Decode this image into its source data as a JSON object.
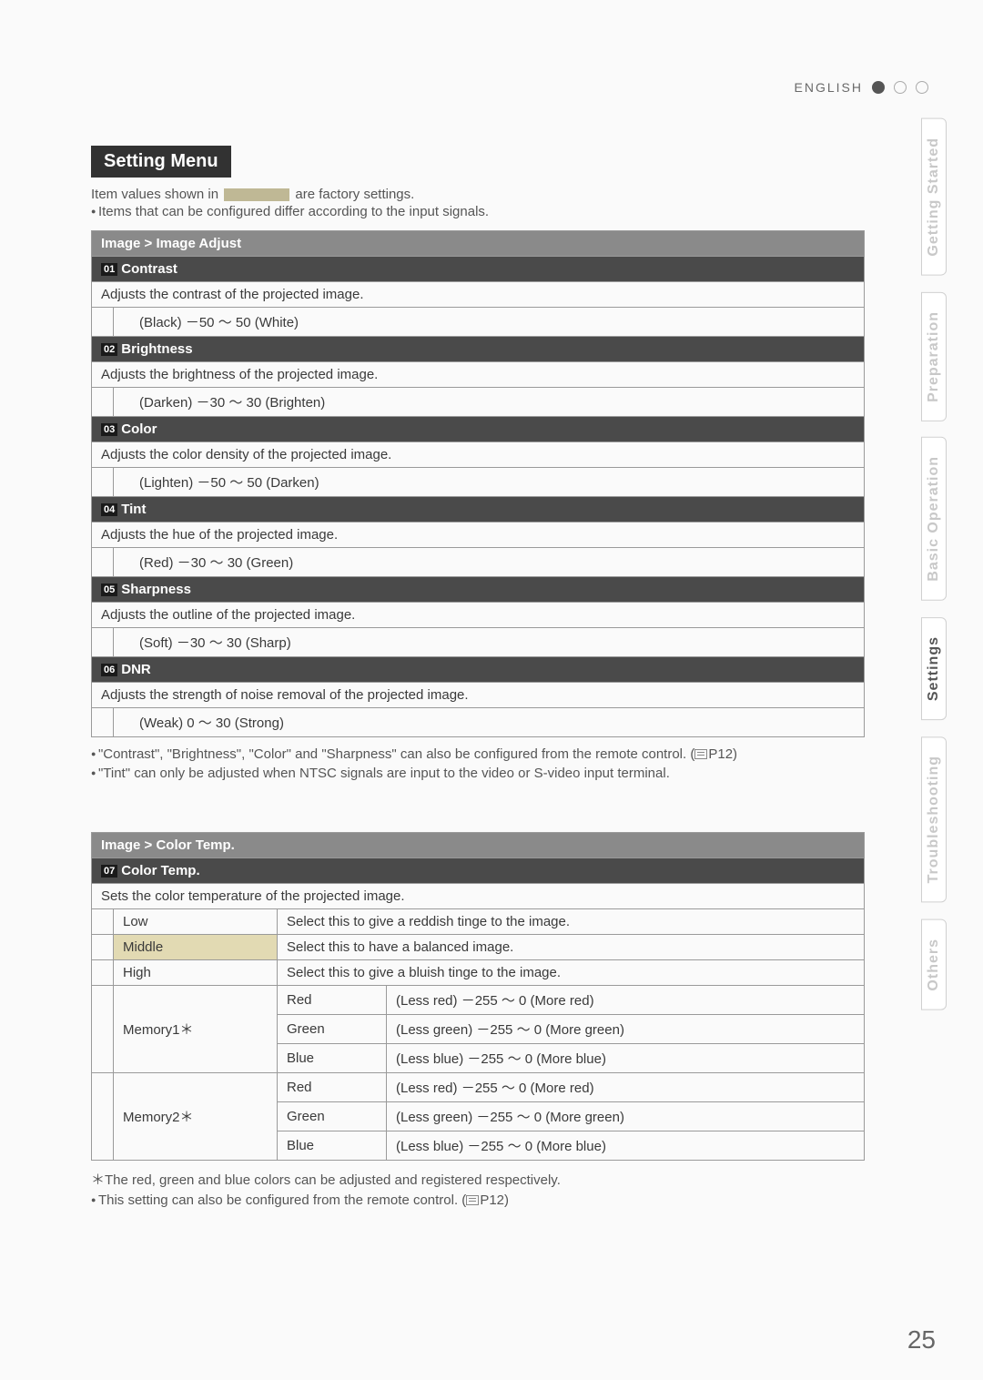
{
  "language_label": "ENGLISH",
  "side_tabs": [
    "Getting Started",
    "Preparation",
    "Basic Operation",
    "Settings",
    "Troubleshooting",
    "Others"
  ],
  "active_tab_index": 3,
  "section_title": "Setting Menu",
  "intro": {
    "line1_pre": "Item values shown in ",
    "line1_post": " are factory settings.",
    "line2": "Items that can be configured differ according to the input signals."
  },
  "image_adjust": {
    "header": "Image > Image Adjust",
    "rows": [
      {
        "num": "01",
        "name": "Contrast",
        "desc": "Adjusts the contrast of the projected image.",
        "range": "(Black) －50 ～ 50 (White)"
      },
      {
        "num": "02",
        "name": "Brightness",
        "desc": "Adjusts the brightness of the projected image.",
        "range": "(Darken) －30 ～ 30 (Brighten)"
      },
      {
        "num": "03",
        "name": "Color",
        "desc": "Adjusts the color density of the projected image.",
        "range": "(Lighten) －50 ～ 50 (Darken)"
      },
      {
        "num": "04",
        "name": "Tint",
        "desc": "Adjusts the hue of the projected image.",
        "range": "(Red) －30 ～ 30 (Green)"
      },
      {
        "num": "05",
        "name": "Sharpness",
        "desc": "Adjusts the outline of the projected image.",
        "range": "(Soft) －30 ～ 30 (Sharp)"
      },
      {
        "num": "06",
        "name": "DNR",
        "desc": "Adjusts the strength of noise removal of the projected image.",
        "range": "(Weak) 0 ～ 30 (Strong)"
      }
    ],
    "notes": [
      "\"Contrast\", \"Brightness\", \"Color\" and \"Sharpness\" can also be configured from the remote control. (",
      "P12)",
      "\"Tint\" can only be adjusted when NTSC signals are input to the video or S-video input terminal."
    ]
  },
  "color_temp": {
    "header": "Image > Color Temp.",
    "sub_num": "07",
    "sub_name": "Color Temp.",
    "desc": "Sets the color temperature of the projected image.",
    "simple_rows": [
      {
        "label": "Low",
        "text": "Select this to give a reddish tinge to the image."
      },
      {
        "label": "Middle",
        "text": "Select this to have a balanced image.",
        "highlight": true
      },
      {
        "label": "High",
        "text": "Select this to give a bluish tinge to the image."
      }
    ],
    "memory_rows": [
      {
        "label": "Memory1＊",
        "channels": [
          {
            "c": "Red",
            "r": "(Less red) －255 ～ 0 (More red)"
          },
          {
            "c": "Green",
            "r": "(Less green) －255 ～ 0 (More green)"
          },
          {
            "c": "Blue",
            "r": "(Less blue) －255 ～ 0 (More blue)"
          }
        ]
      },
      {
        "label": "Memory2＊",
        "channels": [
          {
            "c": "Red",
            "r": "(Less red) －255 ～ 0 (More red)"
          },
          {
            "c": "Green",
            "r": "(Less green) －255 ～ 0 (More green)"
          },
          {
            "c": "Blue",
            "r": "(Less blue) －255 ～ 0 (More blue)"
          }
        ]
      }
    ],
    "footnote1": "＊The red, green and blue colors can be adjusted and registered respectively.",
    "footnote2_pre": "This setting can also be configured from the remote control. (",
    "footnote2_post": "P12)"
  },
  "page_number": "25",
  "colors": {
    "page_bg": "#fafafa",
    "header_dark": "#323232",
    "row_header": "#8a8a8a",
    "sub_header": "#4a4a4a",
    "highlight": "#e2dab3",
    "border": "#9a9a9a"
  }
}
